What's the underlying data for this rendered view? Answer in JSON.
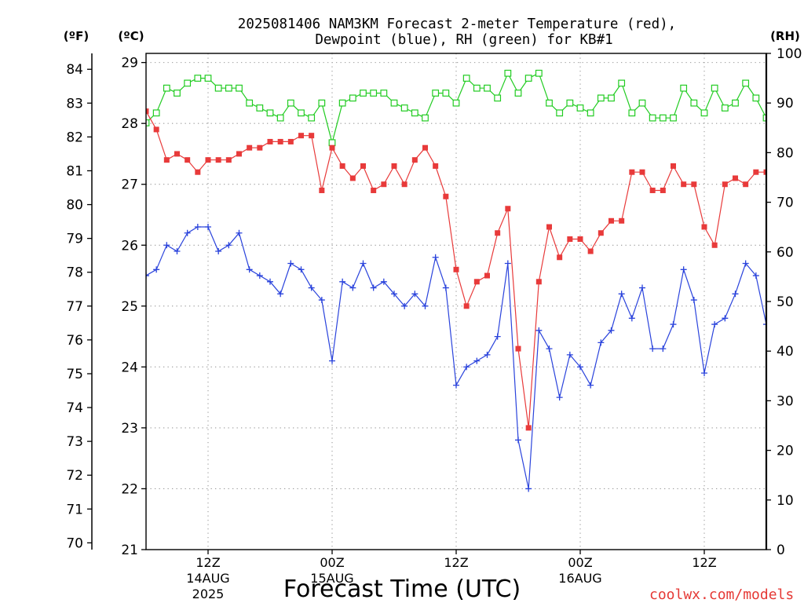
{
  "credit": "coolwx.com/models",
  "chart_data": {
    "type": "line",
    "title": [
      "2025081406 NAM3KM Forecast 2-meter Temperature (red),",
      "Dewpoint (blue), RH (green) for KB#1"
    ],
    "xlabel": "Forecast Time (UTC)",
    "xlim": [
      "2025-08-14 06Z",
      "2025-08-16 18Z"
    ],
    "x_ticks": [
      {
        "t": "2025-08-14 12Z",
        "lines": [
          "12Z",
          "14AUG",
          "2025"
        ]
      },
      {
        "t": "2025-08-15 00Z",
        "lines": [
          "00Z",
          "15AUG"
        ]
      },
      {
        "t": "2025-08-15 12Z",
        "lines": [
          "12Z"
        ]
      },
      {
        "t": "2025-08-16 00Z",
        "lines": [
          "00Z",
          "16AUG"
        ]
      },
      {
        "t": "2025-08-16 12Z",
        "lines": [
          "12Z"
        ]
      }
    ],
    "y_axes": {
      "left_outer": {
        "label": "(ºF)",
        "ticks": [
          70,
          71,
          72,
          73,
          74,
          75,
          76,
          77,
          78,
          79,
          80,
          81,
          82,
          83,
          84
        ]
      },
      "left": {
        "label": "(ºC)",
        "ticks": [
          21,
          22,
          23,
          24,
          25,
          26,
          27,
          28,
          29
        ],
        "range": [
          21,
          29.15
        ]
      },
      "right": {
        "label": "(RH)",
        "ticks": [
          0,
          10,
          20,
          30,
          40,
          50,
          60,
          70,
          80,
          90,
          100
        ],
        "range": [
          0,
          100
        ]
      }
    },
    "grid": true,
    "x": [
      "2025-08-14 06Z",
      "2025-08-14 07Z",
      "2025-08-14 08Z",
      "2025-08-14 09Z",
      "2025-08-14 10Z",
      "2025-08-14 11Z",
      "2025-08-14 12Z",
      "2025-08-14 13Z",
      "2025-08-14 14Z",
      "2025-08-14 15Z",
      "2025-08-14 16Z",
      "2025-08-14 17Z",
      "2025-08-14 18Z",
      "2025-08-14 19Z",
      "2025-08-14 20Z",
      "2025-08-14 21Z",
      "2025-08-14 22Z",
      "2025-08-14 23Z",
      "2025-08-15 00Z",
      "2025-08-15 01Z",
      "2025-08-15 02Z",
      "2025-08-15 03Z",
      "2025-08-15 04Z",
      "2025-08-15 05Z",
      "2025-08-15 06Z",
      "2025-08-15 07Z",
      "2025-08-15 08Z",
      "2025-08-15 09Z",
      "2025-08-15 10Z",
      "2025-08-15 11Z",
      "2025-08-15 12Z",
      "2025-08-15 13Z",
      "2025-08-15 14Z",
      "2025-08-15 15Z",
      "2025-08-15 16Z",
      "2025-08-15 17Z",
      "2025-08-15 18Z",
      "2025-08-15 19Z",
      "2025-08-15 20Z",
      "2025-08-15 21Z",
      "2025-08-15 22Z",
      "2025-08-15 23Z",
      "2025-08-16 00Z",
      "2025-08-16 01Z",
      "2025-08-16 02Z",
      "2025-08-16 03Z",
      "2025-08-16 04Z",
      "2025-08-16 05Z",
      "2025-08-16 06Z",
      "2025-08-16 07Z",
      "2025-08-16 08Z",
      "2025-08-16 09Z",
      "2025-08-16 10Z",
      "2025-08-16 11Z",
      "2025-08-16 12Z",
      "2025-08-16 13Z",
      "2025-08-16 14Z",
      "2025-08-16 15Z",
      "2025-08-16 16Z",
      "2025-08-16 17Z",
      "2025-08-16 18Z"
    ],
    "series": [
      {
        "color": "#22cc22",
        "y_axis": "right",
        "marker": "open-square",
        "values": [
          86,
          88,
          93,
          92,
          94,
          95,
          95,
          93,
          93,
          93,
          90,
          89,
          88,
          87,
          90,
          88,
          87,
          90,
          82,
          90,
          91,
          92,
          92,
          92,
          90,
          89,
          88,
          87,
          92,
          92,
          90,
          95,
          93,
          93,
          91,
          96,
          92,
          95,
          96,
          90,
          88,
          90,
          89,
          88,
          91,
          91,
          94,
          88,
          90,
          87,
          87,
          87,
          93,
          90,
          88,
          93,
          89,
          90,
          94,
          91,
          87
        ]
      },
      {
        "color": "#2a43dc",
        "y_axis": "left",
        "marker": "plus",
        "values": [
          25.5,
          25.6,
          26.0,
          25.9,
          26.2,
          26.3,
          26.3,
          25.9,
          26.0,
          26.2,
          25.6,
          25.5,
          25.4,
          25.2,
          25.7,
          25.6,
          25.3,
          25.1,
          24.1,
          25.4,
          25.3,
          25.7,
          25.3,
          25.4,
          25.2,
          25.0,
          25.2,
          25.0,
          25.8,
          25.3,
          23.7,
          24.0,
          24.1,
          24.2,
          24.5,
          25.7,
          22.8,
          22.0,
          24.6,
          24.3,
          23.5,
          24.2,
          24.0,
          23.7,
          24.4,
          24.6,
          25.2,
          24.8,
          25.3,
          24.3,
          24.3,
          24.7,
          25.6,
          25.1,
          23.9,
          24.7,
          24.8,
          25.2,
          25.7,
          25.5,
          24.7
        ]
      },
      {
        "color": "#e83a3a",
        "y_axis": "left",
        "marker": "filled-square",
        "values": [
          28.2,
          27.9,
          27.4,
          27.5,
          27.4,
          27.2,
          27.4,
          27.4,
          27.4,
          27.5,
          27.6,
          27.6,
          27.7,
          27.7,
          27.7,
          27.8,
          27.8,
          26.9,
          27.6,
          27.3,
          27.1,
          27.3,
          26.9,
          27.0,
          27.3,
          27.0,
          27.4,
          27.6,
          27.3,
          26.8,
          25.6,
          25.0,
          25.4,
          25.5,
          26.2,
          26.6,
          24.3,
          23.0,
          25.4,
          26.3,
          25.8,
          26.1,
          26.1,
          25.9,
          26.2,
          26.4,
          26.4,
          27.2,
          27.2,
          26.9,
          26.9,
          27.3,
          27.0,
          27.0,
          26.3,
          26.0,
          27.0,
          27.1,
          27.0,
          27.2,
          27.2
        ]
      }
    ]
  }
}
